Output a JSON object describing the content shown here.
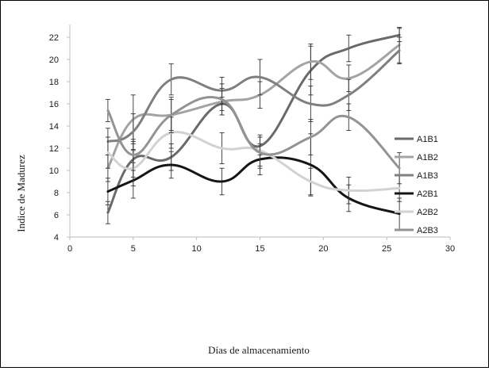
{
  "chart_data": {
    "type": "line",
    "title": "",
    "xlabel": "Días de almacenamiento",
    "ylabel": "Indice  de Madurez",
    "xlim": [
      0,
      30
    ],
    "ylim": [
      4,
      22
    ],
    "xticks": [
      0,
      5,
      10,
      15,
      20,
      25,
      30
    ],
    "yticks": [
      4,
      6,
      8,
      10,
      12,
      14,
      16,
      18,
      20,
      22
    ],
    "grid": false,
    "legend_position": "right",
    "series": [
      {
        "name": "A1B1",
        "color": "#6a6a6a",
        "x": [
          3,
          5,
          8,
          12,
          15,
          19,
          22,
          26
        ],
        "y": [
          6.2,
          11.0,
          11.2,
          16.0,
          12.2,
          19.0,
          21.0,
          22.2
        ],
        "err": [
          1.0,
          1.6,
          1.2,
          0.6,
          0.8,
          2.2,
          1.2,
          0.6
        ]
      },
      {
        "name": "A1B2",
        "color": "#a3a3a3",
        "x": [
          3,
          5,
          8,
          12,
          15,
          19,
          22,
          26
        ],
        "y": [
          10.2,
          14.6,
          15.0,
          16.2,
          16.8,
          19.8,
          18.3,
          21.3
        ],
        "err": [
          1.2,
          2.2,
          1.4,
          1.2,
          1.2,
          1.6,
          1.2,
          1.6
        ]
      },
      {
        "name": "A1B3",
        "color": "#7f7f7f",
        "x": [
          3,
          5,
          8,
          12,
          15,
          19,
          22,
          26
        ],
        "y": [
          12.6,
          13.5,
          18.2,
          17.2,
          18.4,
          16.0,
          16.8,
          20.8
        ],
        "err": [
          1.2,
          1.6,
          1.4,
          1.2,
          1.6,
          1.6,
          1.4,
          1.2
        ]
      },
      {
        "name": "A2B1",
        "color": "#151515",
        "x": [
          3,
          5,
          8,
          12,
          15,
          19,
          22,
          26
        ],
        "y": [
          8.1,
          9.1,
          10.5,
          9.0,
          11.0,
          10.5,
          7.5,
          6.1
        ],
        "err": [
          1.2,
          1.6,
          1.2,
          1.2,
          1.4,
          2.8,
          1.2,
          1.4
        ]
      },
      {
        "name": "A2B2",
        "color": "#d2d2d2",
        "x": [
          3,
          5,
          8,
          12,
          15,
          19,
          22,
          26
        ],
        "y": [
          11.6,
          10.2,
          13.4,
          12.0,
          11.8,
          9.0,
          8.2,
          8.4
        ],
        "err": [
          1.4,
          1.6,
          1.4,
          1.4,
          1.4,
          1.2,
          1.2,
          1.2
        ]
      },
      {
        "name": "A2B3",
        "color": "#939393",
        "x": [
          3,
          5,
          8,
          12,
          15,
          19,
          22,
          26
        ],
        "y": [
          15.4,
          11.4,
          15.0,
          16.4,
          11.6,
          13.0,
          14.8,
          10.2
        ],
        "err": [
          1.0,
          1.4,
          1.6,
          1.4,
          1.4,
          1.6,
          1.2,
          1.4
        ]
      }
    ]
  }
}
